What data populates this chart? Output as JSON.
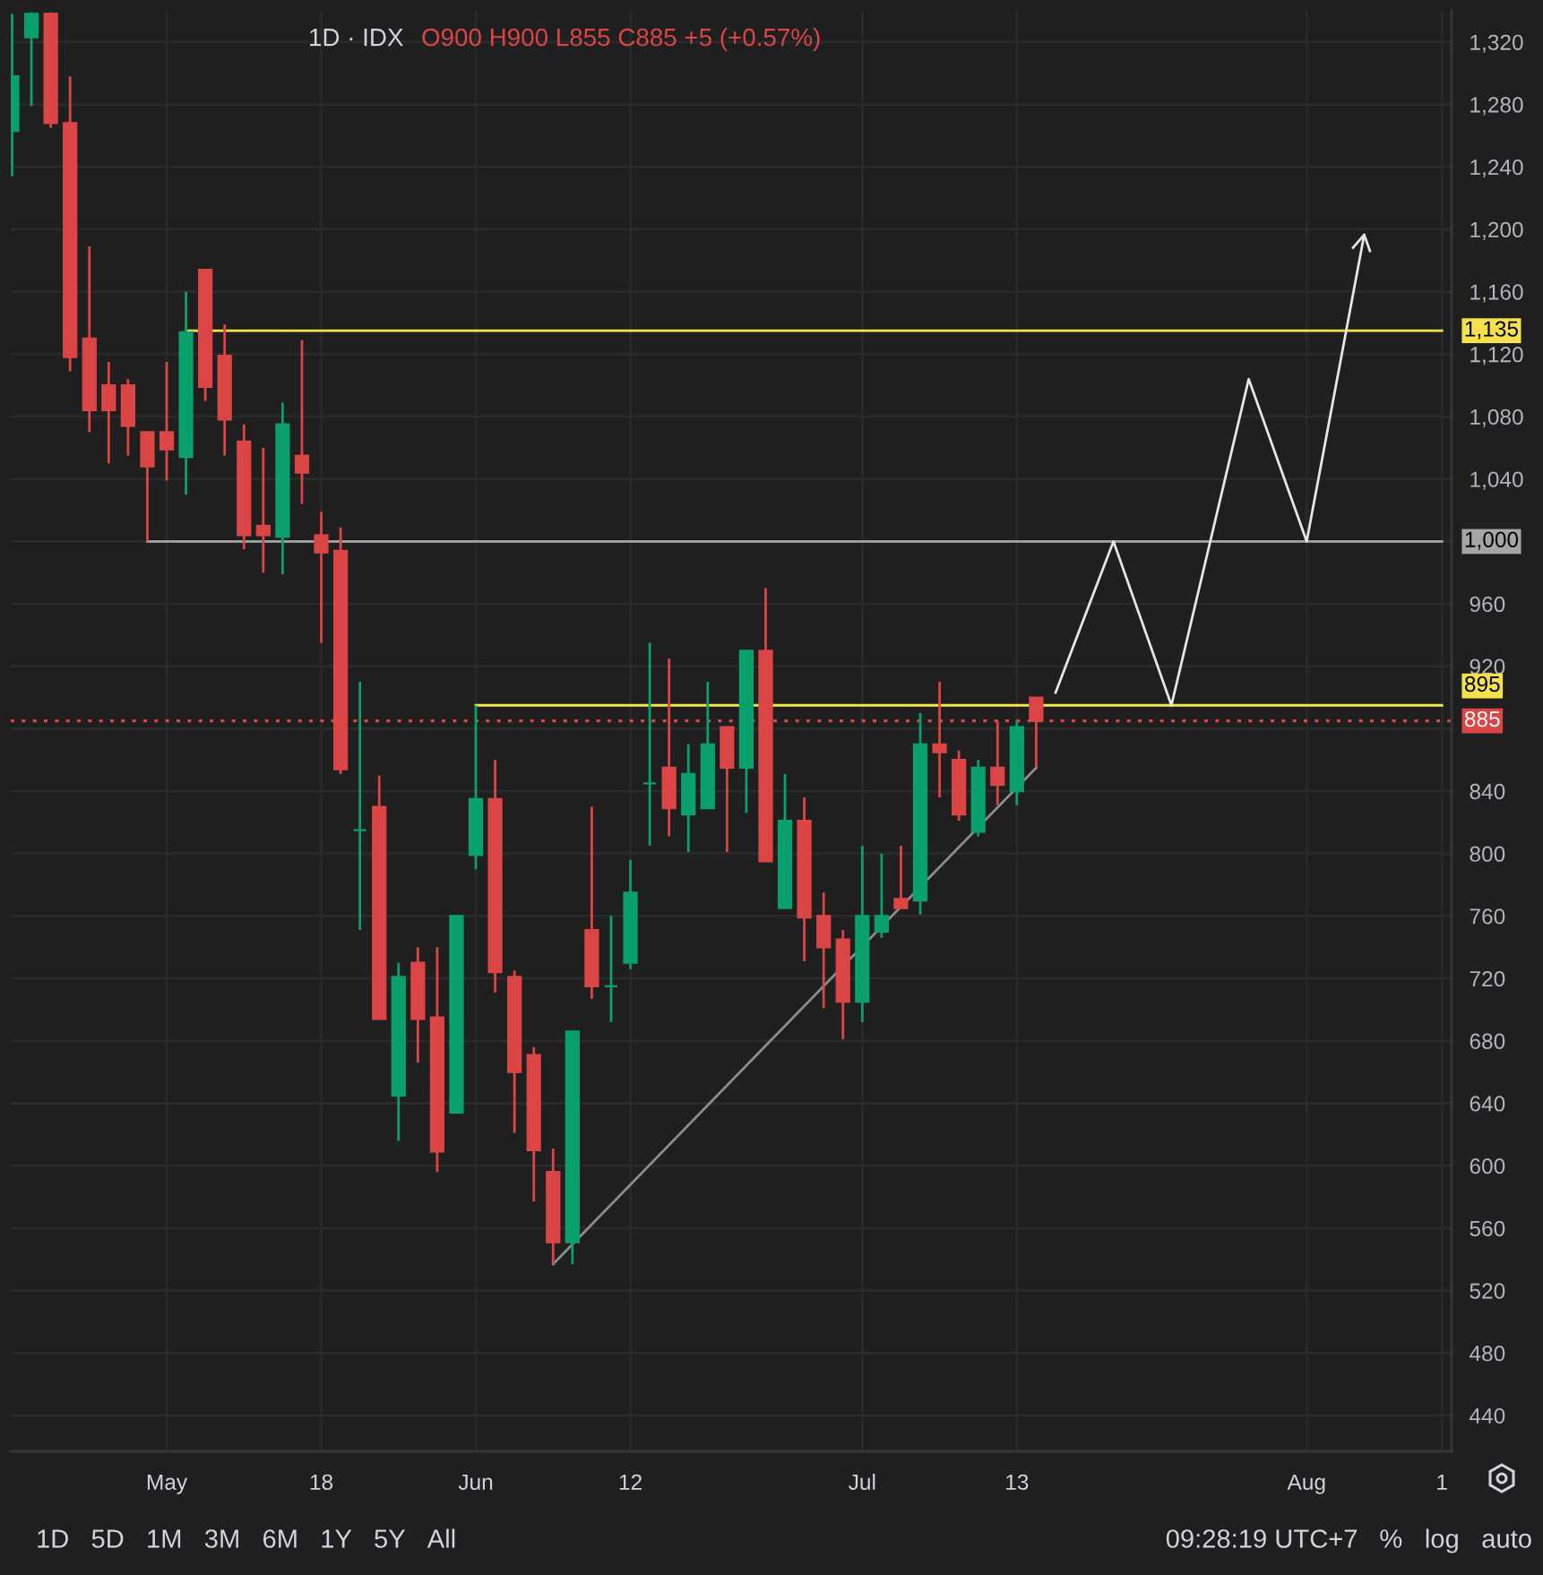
{
  "chart_data": {
    "type": "candlestick",
    "title": "1D · IDX",
    "subtitle": "O900 H900 L855 C885 +5 (+0.57%)",
    "categories": [
      null,
      null,
      null,
      null,
      null,
      null,
      null,
      null,
      "May",
      null,
      null,
      null,
      null,
      null,
      null,
      null,
      "18",
      null,
      null,
      null,
      null,
      null,
      null,
      null,
      "Jun",
      null,
      null,
      null,
      null,
      null,
      null,
      null,
      "12",
      null,
      null,
      null,
      null,
      null,
      null,
      null,
      null,
      null,
      null,
      null,
      "Jul",
      null,
      null,
      null,
      null,
      null,
      null,
      null,
      "13",
      null,
      null,
      null,
      null,
      null,
      null,
      null,
      null,
      null,
      null,
      null,
      null,
      null,
      null,
      "Aug",
      null,
      null,
      null,
      null,
      null,
      null,
      "1"
    ],
    "ohlc": [
      [
        1263,
        1338,
        1234,
        1298
      ],
      [
        1323,
        1339,
        1279,
        1338
      ],
      [
        1338,
        1339,
        1265,
        1268
      ],
      [
        1268,
        1298,
        1109,
        1118
      ],
      [
        1130,
        1189,
        1070,
        1084
      ],
      [
        1100,
        1115,
        1050,
        1084
      ],
      [
        1100,
        1104,
        1055,
        1074
      ],
      [
        1070,
        1070,
        1000,
        1048
      ],
      [
        1070,
        1115,
        1039,
        1059
      ],
      [
        1054,
        1160,
        1030,
        1134
      ],
      [
        1174,
        1174,
        1090,
        1099
      ],
      [
        1119,
        1139,
        1055,
        1078
      ],
      [
        1064,
        1075,
        995,
        1004
      ],
      [
        1010,
        1060,
        980,
        1004
      ],
      [
        1003,
        1089,
        979,
        1075
      ],
      [
        1055,
        1129,
        1024,
        1044
      ],
      [
        1004,
        1019,
        935,
        993
      ],
      [
        994,
        1009,
        851,
        854
      ],
      [
        815,
        910,
        751,
        815
      ],
      [
        830,
        850,
        694,
        694
      ],
      [
        645,
        730,
        616,
        721
      ],
      [
        730,
        740,
        666,
        694
      ],
      [
        695,
        740,
        596,
        609
      ],
      [
        634,
        760,
        634,
        760
      ],
      [
        799,
        895,
        790,
        835
      ],
      [
        835,
        860,
        711,
        724
      ],
      [
        721,
        725,
        621,
        660
      ],
      [
        671,
        676,
        577,
        610
      ],
      [
        596,
        611,
        537,
        551
      ],
      [
        551,
        686,
        537,
        686
      ],
      [
        751,
        830,
        707,
        715
      ],
      [
        715,
        760,
        692,
        715
      ],
      [
        730,
        796,
        726,
        775
      ],
      [
        845,
        935,
        805,
        845
      ],
      [
        855,
        925,
        811,
        829
      ],
      [
        825,
        870,
        801,
        851
      ],
      [
        829,
        910,
        829,
        870
      ],
      [
        881,
        881,
        801,
        855
      ],
      [
        855,
        930,
        826,
        930
      ],
      [
        930,
        970,
        795,
        795
      ],
      [
        765,
        851,
        765,
        821
      ],
      [
        821,
        836,
        731,
        759
      ],
      [
        760,
        775,
        701,
        740
      ],
      [
        745,
        751,
        681,
        705
      ],
      [
        705,
        805,
        692,
        760
      ],
      [
        750,
        800,
        746,
        760
      ],
      [
        771,
        805,
        765,
        765
      ],
      [
        770,
        890,
        761,
        870
      ],
      [
        870,
        910,
        836,
        865
      ],
      [
        860,
        866,
        821,
        825
      ],
      [
        814,
        860,
        811,
        855
      ],
      [
        855,
        885,
        831,
        844
      ],
      [
        840,
        885,
        831,
        881
      ],
      [
        900,
        900,
        855,
        885
      ],
      null,
      null,
      null,
      null,
      null,
      null,
      null,
      null,
      null,
      null,
      null,
      null,
      null,
      null,
      null,
      null,
      null,
      null,
      null,
      null,
      null
    ],
    "colors": [
      "#0aa06c",
      "#0aa06c",
      "#dc4545",
      "#dc4545",
      "#dc4545",
      "#dc4545",
      "#dc4545",
      "#dc4545",
      "#dc4545",
      "#0aa06c",
      "#dc4545",
      "#dc4545",
      "#dc4545",
      "#dc4545",
      "#0aa06c",
      "#dc4545",
      "#dc4545",
      "#dc4545",
      "#0aa06c",
      "#dc4545",
      "#0aa06c",
      "#dc4545",
      "#dc4545",
      "#0aa06c",
      "#0aa06c",
      "#dc4545",
      "#dc4545",
      "#dc4545",
      "#dc4545",
      "#0aa06c",
      "#dc4545",
      "#0aa06c",
      "#0aa06c",
      "#0aa06c",
      "#dc4545",
      "#0aa06c",
      "#0aa06c",
      "#dc4545",
      "#0aa06c",
      "#dc4545",
      "#0aa06c",
      "#dc4545",
      "#dc4545",
      "#dc4545",
      "#0aa06c",
      "#0aa06c",
      "#dc4545",
      "#0aa06c",
      "#dc4545",
      "#dc4545",
      "#0aa06c",
      "#dc4545",
      "#0aa06c",
      "#dc4545",
      null,
      null,
      null,
      null,
      null,
      null,
      null,
      null,
      null,
      null,
      null,
      null,
      null,
      null,
      null,
      null,
      null,
      null,
      null,
      null,
      null
    ],
    "series": [
      {
        "type": "line",
        "color": "#f5e14a",
        "values": [
          null,
          null,
          null,
          null,
          null,
          null,
          null,
          null,
          null,
          1135,
          null,
          null,
          null,
          null,
          null,
          null,
          null,
          null,
          null,
          null,
          null,
          null,
          null,
          null,
          null,
          null,
          null,
          null,
          null,
          null,
          null,
          null,
          null,
          null,
          null,
          null,
          null,
          null,
          null,
          null,
          null,
          null,
          null,
          null,
          null,
          null,
          null,
          null,
          null,
          null,
          null,
          null,
          null,
          null,
          null,
          null,
          null,
          null,
          null,
          null,
          null,
          null,
          null,
          null,
          null,
          null,
          null,
          null,
          null,
          null,
          null,
          null,
          null,
          null,
          1135
        ],
        "value_labels": [
          null,
          null,
          null,
          null,
          null,
          null,
          null,
          null,
          null,
          null,
          null,
          null,
          null,
          null,
          null,
          null,
          null,
          null,
          null,
          null,
          null,
          null,
          null,
          null,
          null,
          null,
          null,
          null,
          null,
          null,
          null,
          null,
          null,
          null,
          null,
          null,
          null,
          null,
          null,
          null,
          null,
          null,
          null,
          null,
          null,
          null,
          null,
          null,
          null,
          null,
          null,
          null,
          null,
          null,
          null,
          null,
          null,
          null,
          null,
          null,
          null,
          null,
          null,
          null,
          null,
          null,
          null,
          null,
          null,
          null,
          null,
          null,
          null,
          null,
          "1,135"
        ]
      },
      {
        "type": "line",
        "color": "#a5a5a5",
        "values": [
          null,
          null,
          null,
          null,
          null,
          null,
          null,
          1000,
          null,
          null,
          null,
          null,
          null,
          null,
          null,
          null,
          null,
          null,
          null,
          null,
          null,
          null,
          null,
          null,
          null,
          null,
          null,
          null,
          null,
          null,
          null,
          null,
          null,
          null,
          null,
          null,
          null,
          null,
          null,
          null,
          null,
          null,
          null,
          null,
          null,
          null,
          null,
          null,
          null,
          null,
          null,
          null,
          null,
          null,
          null,
          null,
          null,
          null,
          null,
          null,
          null,
          null,
          null,
          null,
          null,
          null,
          null,
          null,
          null,
          null,
          null,
          null,
          null,
          null,
          1000
        ],
        "value_labels": [
          null,
          null,
          null,
          null,
          null,
          null,
          null,
          null,
          null,
          null,
          null,
          null,
          null,
          null,
          null,
          null,
          null,
          null,
          null,
          null,
          null,
          null,
          null,
          null,
          null,
          null,
          null,
          null,
          null,
          null,
          null,
          null,
          null,
          null,
          null,
          null,
          null,
          null,
          null,
          null,
          null,
          null,
          null,
          null,
          null,
          null,
          null,
          null,
          null,
          null,
          null,
          null,
          null,
          null,
          null,
          null,
          null,
          null,
          null,
          null,
          null,
          null,
          null,
          null,
          null,
          null,
          null,
          null,
          null,
          null,
          null,
          null,
          null,
          null,
          "1,000"
        ]
      },
      {
        "type": "line",
        "color": "#f5e14a",
        "values": [
          null,
          null,
          null,
          null,
          null,
          null,
          null,
          null,
          null,
          null,
          null,
          null,
          null,
          null,
          null,
          null,
          null,
          null,
          null,
          null,
          null,
          null,
          null,
          null,
          895,
          null,
          null,
          null,
          null,
          null,
          null,
          null,
          null,
          null,
          null,
          null,
          null,
          null,
          null,
          null,
          null,
          null,
          null,
          null,
          null,
          null,
          null,
          null,
          null,
          null,
          null,
          null,
          null,
          null,
          null,
          null,
          null,
          null,
          null,
          null,
          null,
          null,
          null,
          null,
          null,
          null,
          null,
          null,
          null,
          null,
          null,
          null,
          null,
          null,
          895
        ],
        "value_labels": [
          null,
          null,
          null,
          null,
          null,
          null,
          null,
          null,
          null,
          null,
          null,
          null,
          null,
          null,
          null,
          null,
          null,
          null,
          null,
          null,
          null,
          null,
          null,
          null,
          null,
          null,
          null,
          null,
          null,
          null,
          null,
          null,
          null,
          null,
          null,
          null,
          null,
          null,
          null,
          null,
          null,
          null,
          null,
          null,
          null,
          null,
          null,
          null,
          null,
          null,
          null,
          null,
          null,
          null,
          null,
          null,
          null,
          null,
          null,
          null,
          null,
          null,
          null,
          null,
          null,
          null,
          null,
          null,
          null,
          null,
          null,
          null,
          null,
          null,
          "895"
        ]
      },
      {
        "type": "line",
        "color": "#8c8c8c",
        "values": [
          null,
          null,
          null,
          null,
          null,
          null,
          null,
          null,
          null,
          null,
          null,
          null,
          null,
          null,
          null,
          null,
          null,
          null,
          null,
          null,
          null,
          null,
          null,
          null,
          null,
          null,
          null,
          null,
          537,
          null,
          null,
          null,
          null,
          null,
          null,
          null,
          null,
          null,
          null,
          null,
          null,
          null,
          null,
          null,
          null,
          null,
          null,
          null,
          null,
          null,
          null,
          null,
          null,
          855,
          null,
          null,
          null,
          null,
          null,
          null,
          null,
          null,
          null,
          null,
          null,
          null,
          null,
          null,
          null,
          null,
          null,
          null,
          null,
          null,
          null
        ]
      },
      {
        "type": "line",
        "color": "#e6e6e6",
        "values": [
          null,
          null,
          null,
          null,
          null,
          null,
          null,
          null,
          null,
          null,
          null,
          null,
          null,
          null,
          null,
          null,
          null,
          null,
          null,
          null,
          null,
          null,
          null,
          null,
          null,
          null,
          null,
          null,
          null,
          null,
          null,
          null,
          null,
          null,
          null,
          null,
          null,
          null,
          null,
          null,
          null,
          null,
          null,
          null,
          null,
          null,
          null,
          null,
          null,
          null,
          null,
          null,
          null,
          null,
          903,
          null,
          null,
          1000,
          null,
          null,
          895,
          null,
          null,
          null,
          1104,
          null,
          null,
          1000,
          null,
          null,
          1198,
          null,
          null,
          null,
          null
        ]
      }
    ],
    "ref_lines": [
      {
        "axis": "y",
        "value": 885,
        "label": "885",
        "color": "#dc4545",
        "line_style": "dotted"
      }
    ],
    "ylim": [
      417,
      1340
    ],
    "yticks": [
      440,
      480,
      520,
      560,
      600,
      640,
      680,
      720,
      760,
      800,
      840,
      {
        "value": 880,
        "label": null
      },
      920,
      960,
      {
        "value": 1000,
        "label": null
      },
      {
        "value": 1040,
        "label": "1,040"
      },
      {
        "value": 1080,
        "label": "1,080"
      },
      {
        "value": 1120,
        "label": "1,120"
      },
      {
        "value": 1160,
        "label": "1,160"
      },
      {
        "value": 1200,
        "label": "1,200"
      },
      {
        "value": 1240,
        "label": "1,240"
      },
      {
        "value": 1280,
        "label": "1,280"
      },
      {
        "value": 1320,
        "label": "1,320"
      }
    ],
    "grid": true,
    "annotations": [
      "1D",
      "5D",
      "1M",
      "3M",
      "6M",
      "1Y",
      "5Y",
      "All",
      "09:28:19 UTC+7",
      "%",
      "log",
      "auto"
    ]
  }
}
